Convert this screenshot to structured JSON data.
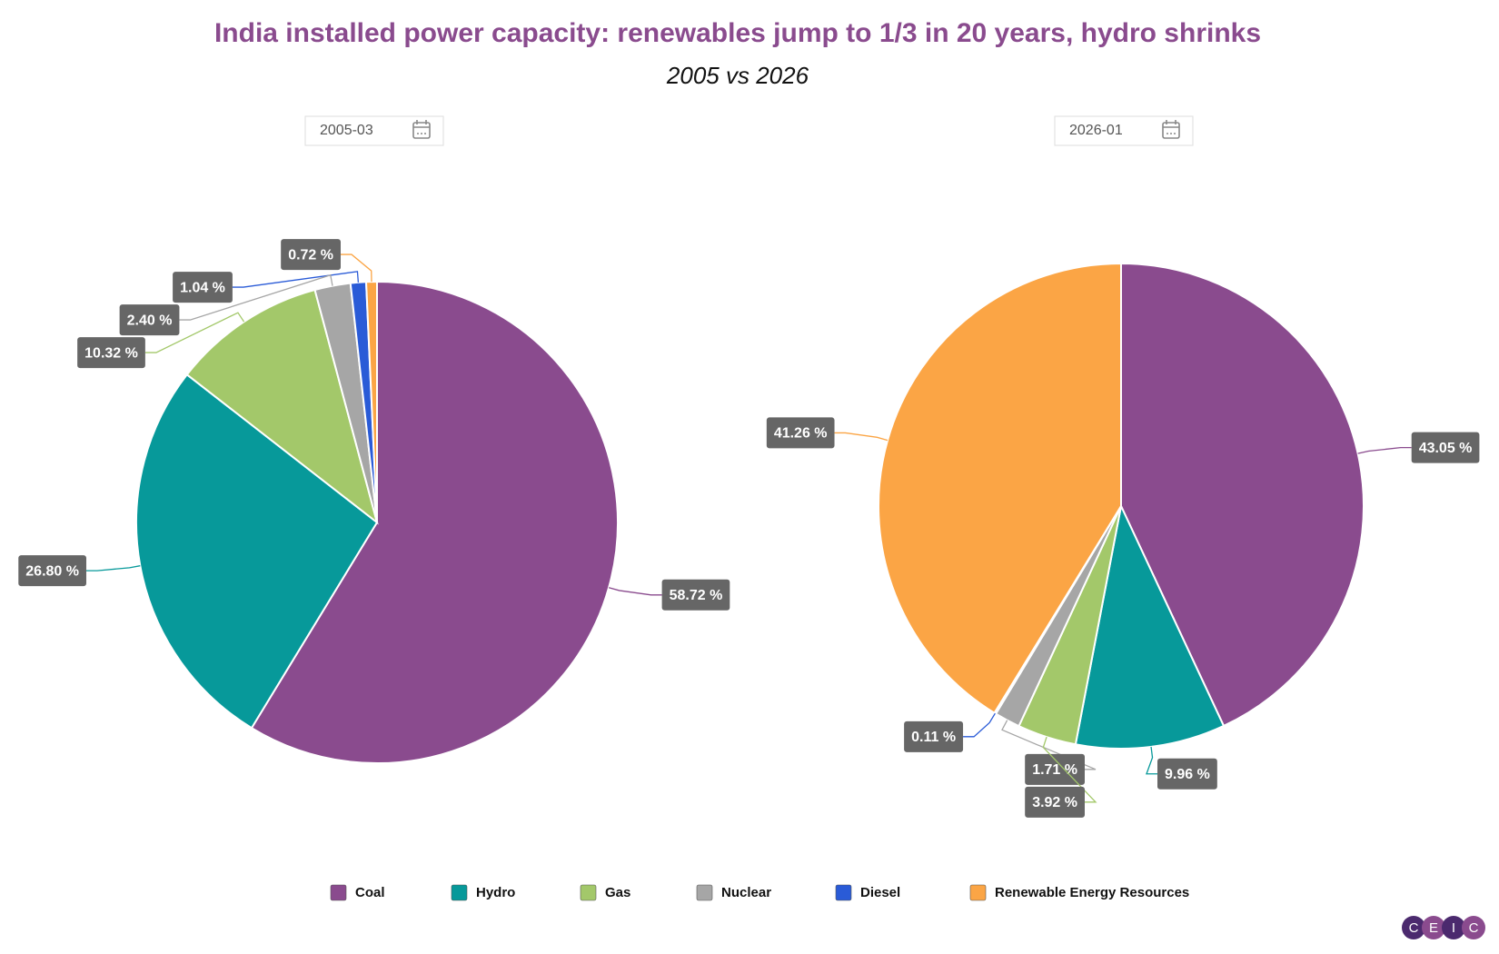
{
  "title": "India installed power capacity: renewables jump to 1/3 in 20 years, hydro shrinks",
  "subtitle": "2005 vs 2026",
  "legend": {
    "categories": [
      "Coal",
      "Hydro",
      "Gas",
      "Nuclear",
      "Diesel",
      "Renewable Energy Resources"
    ],
    "colors": [
      "#8a4b8e",
      "#07999a",
      "#a3c86a",
      "#a6a6a6",
      "#2a5bd7",
      "#fba545"
    ]
  },
  "logo": [
    "C",
    "E",
    "I",
    "C"
  ],
  "chart_data": [
    {
      "type": "pie",
      "date": "2005-03",
      "values": [
        58.72,
        26.8,
        10.32,
        2.4,
        1.04,
        0.72
      ],
      "value_labels": [
        "58.72 %",
        "26.80 %",
        "10.32 %",
        "2.40 %",
        "1.04 %",
        "0.72 %"
      ]
    },
    {
      "type": "pie",
      "date": "2026-01",
      "values": [
        43.05,
        9.96,
        3.92,
        1.71,
        0.11,
        41.26
      ],
      "value_labels": [
        "43.05 %",
        "9.96 %",
        "3.92 %",
        "1.71 %",
        "0.11 %",
        "41.26 %"
      ]
    }
  ]
}
